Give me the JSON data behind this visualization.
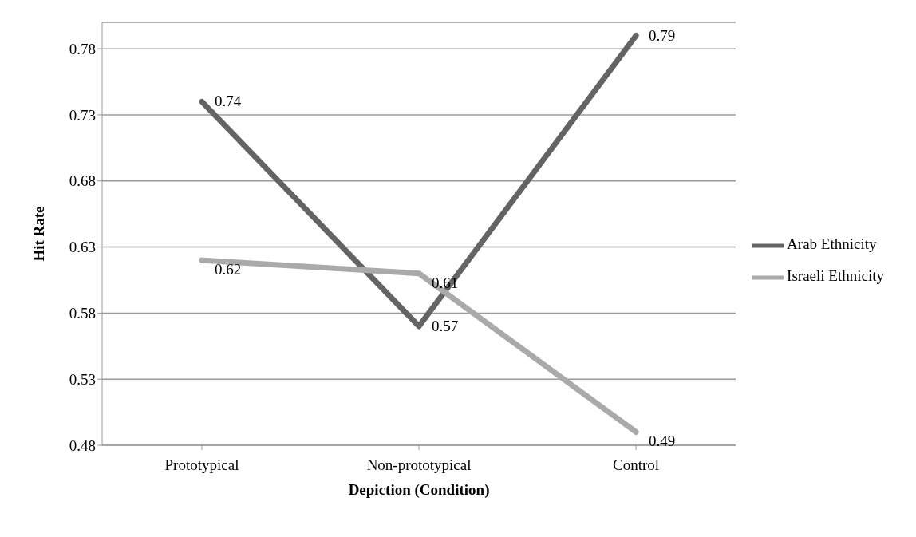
{
  "chart_data": {
    "type": "line",
    "xlabel": "Depiction (Condition)",
    "ylabel": "Hit Rate",
    "categories": [
      "Prototypical",
      "Non-prototypical",
      "Control"
    ],
    "series": [
      {
        "name": "Arab Ethnicity",
        "color": "#646464",
        "values": [
          0.74,
          0.57,
          0.79
        ]
      },
      {
        "name": "Israeli Ethnicity",
        "color": "#aaaaaa",
        "values": [
          0.62,
          0.61,
          0.49
        ]
      }
    ],
    "ylim": [
      0.48,
      0.8
    ],
    "yticks": [
      0.48,
      0.53,
      0.58,
      0.63,
      0.68,
      0.73,
      0.78
    ],
    "grid": "y",
    "legend": "right",
    "marker": "none",
    "data_labels": true
  }
}
